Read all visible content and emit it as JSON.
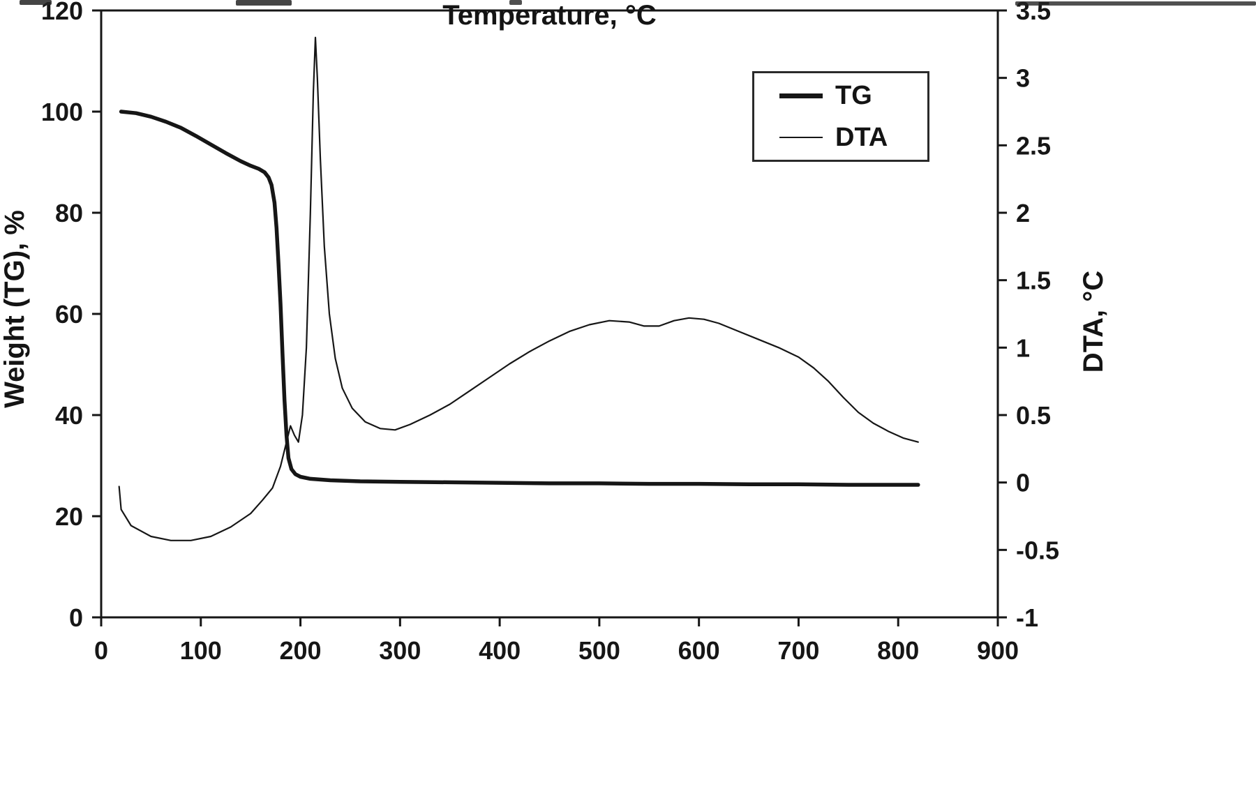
{
  "chart_data": {
    "type": "line",
    "title": "",
    "xlabel": "Temperature, °C",
    "ylabel_left": "Weight (TG), %",
    "ylabel_right": "DTA, °C",
    "xlim": [
      0,
      900
    ],
    "ylim_left": [
      0,
      120
    ],
    "ylim_right": [
      -1,
      3.5
    ],
    "x_ticks": [
      0,
      100,
      200,
      300,
      400,
      500,
      600,
      700,
      800,
      900
    ],
    "y_ticks_left": [
      0,
      20,
      40,
      60,
      80,
      100,
      120
    ],
    "y_ticks_right": [
      -1,
      -0.5,
      0,
      0.5,
      1,
      1.5,
      2,
      2.5,
      3,
      3.5
    ],
    "grid": false,
    "legend_position": "top-right",
    "legend": [
      {
        "label": "TG",
        "weight": "thick"
      },
      {
        "label": "DTA",
        "weight": "thin"
      }
    ],
    "series": [
      {
        "name": "TG",
        "axis": "left",
        "weight": "thick",
        "points": [
          [
            20,
            100
          ],
          [
            35,
            99.7
          ],
          [
            50,
            99
          ],
          [
            65,
            98
          ],
          [
            80,
            96.8
          ],
          [
            95,
            95.2
          ],
          [
            110,
            93.5
          ],
          [
            125,
            91.8
          ],
          [
            140,
            90.2
          ],
          [
            150,
            89.3
          ],
          [
            158,
            88.7
          ],
          [
            164,
            88
          ],
          [
            168,
            87
          ],
          [
            171,
            85.5
          ],
          [
            174,
            82
          ],
          [
            176,
            77
          ],
          [
            178,
            70
          ],
          [
            180,
            62
          ],
          [
            182,
            52
          ],
          [
            184,
            43
          ],
          [
            186,
            36
          ],
          [
            188,
            31.5
          ],
          [
            191,
            29.3
          ],
          [
            195,
            28.3
          ],
          [
            200,
            27.8
          ],
          [
            210,
            27.4
          ],
          [
            230,
            27.1
          ],
          [
            260,
            26.9
          ],
          [
            300,
            26.8
          ],
          [
            350,
            26.7
          ],
          [
            400,
            26.6
          ],
          [
            450,
            26.5
          ],
          [
            500,
            26.5
          ],
          [
            550,
            26.4
          ],
          [
            600,
            26.4
          ],
          [
            650,
            26.3
          ],
          [
            700,
            26.3
          ],
          [
            750,
            26.2
          ],
          [
            820,
            26.2
          ]
        ]
      },
      {
        "name": "DTA",
        "axis": "right",
        "weight": "thin",
        "points": [
          [
            18,
            -0.03
          ],
          [
            20,
            -0.2
          ],
          [
            30,
            -0.32
          ],
          [
            50,
            -0.4
          ],
          [
            70,
            -0.43
          ],
          [
            90,
            -0.43
          ],
          [
            110,
            -0.4
          ],
          [
            130,
            -0.33
          ],
          [
            150,
            -0.23
          ],
          [
            162,
            -0.13
          ],
          [
            172,
            -0.04
          ],
          [
            180,
            0.12
          ],
          [
            186,
            0.3
          ],
          [
            190,
            0.42
          ],
          [
            194,
            0.35
          ],
          [
            198,
            0.3
          ],
          [
            202,
            0.5
          ],
          [
            206,
            1.0
          ],
          [
            210,
            2.0
          ],
          [
            213,
            2.9
          ],
          [
            215,
            3.3
          ],
          [
            217,
            3.0
          ],
          [
            220,
            2.4
          ],
          [
            224,
            1.75
          ],
          [
            229,
            1.25
          ],
          [
            235,
            0.92
          ],
          [
            242,
            0.7
          ],
          [
            252,
            0.55
          ],
          [
            265,
            0.45
          ],
          [
            280,
            0.4
          ],
          [
            295,
            0.39
          ],
          [
            310,
            0.43
          ],
          [
            330,
            0.5
          ],
          [
            350,
            0.58
          ],
          [
            370,
            0.68
          ],
          [
            390,
            0.78
          ],
          [
            410,
            0.88
          ],
          [
            430,
            0.97
          ],
          [
            450,
            1.05
          ],
          [
            470,
            1.12
          ],
          [
            490,
            1.17
          ],
          [
            510,
            1.2
          ],
          [
            530,
            1.19
          ],
          [
            545,
            1.16
          ],
          [
            560,
            1.16
          ],
          [
            575,
            1.2
          ],
          [
            590,
            1.22
          ],
          [
            605,
            1.21
          ],
          [
            620,
            1.18
          ],
          [
            640,
            1.12
          ],
          [
            660,
            1.06
          ],
          [
            680,
            1.0
          ],
          [
            700,
            0.93
          ],
          [
            715,
            0.85
          ],
          [
            730,
            0.75
          ],
          [
            745,
            0.63
          ],
          [
            760,
            0.52
          ],
          [
            775,
            0.44
          ],
          [
            790,
            0.38
          ],
          [
            805,
            0.33
          ],
          [
            820,
            0.3
          ]
        ]
      }
    ]
  }
}
